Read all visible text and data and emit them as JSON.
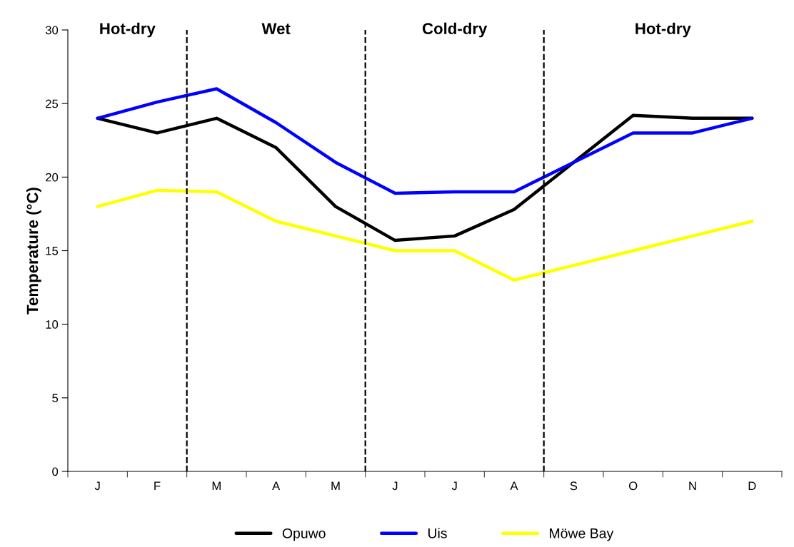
{
  "chart_data": {
    "type": "line",
    "ylabel": "Temperature (°C)",
    "categories": [
      "J",
      "F",
      "M",
      "A",
      "M",
      "J",
      "J",
      "A",
      "S",
      "O",
      "N",
      "D"
    ],
    "series": [
      {
        "name": "Opuwo",
        "color": "#000000",
        "values": [
          24,
          23,
          24,
          22,
          18,
          15.7,
          16,
          17.8,
          21,
          24.2,
          24,
          24
        ]
      },
      {
        "name": "Uis",
        "color": "#0000ff",
        "values": [
          24,
          25.1,
          26,
          23.7,
          21,
          18.9,
          19,
          19,
          21,
          23,
          23,
          24
        ]
      },
      {
        "name": "Möwe Bay",
        "color": "#ffff00",
        "values": [
          18,
          19.1,
          19,
          17,
          16,
          15,
          15,
          13,
          14,
          15,
          16,
          17
        ]
      }
    ],
    "ylim": [
      0,
      30
    ],
    "yticks": [
      0,
      5,
      10,
      15,
      20,
      25,
      30
    ],
    "annotations": [
      "Hot-dry",
      "Wet",
      "Cold-dry",
      "Hot-dry"
    ],
    "grid": false,
    "legend": "bottom",
    "marker": "none",
    "line_style": "solid"
  }
}
